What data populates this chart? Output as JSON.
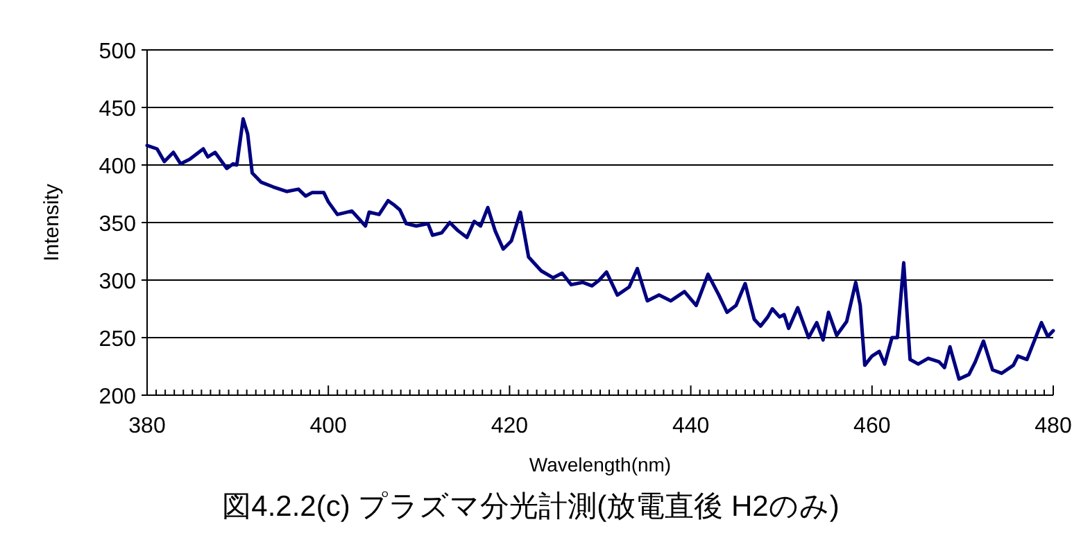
{
  "chart_data": {
    "type": "line",
    "title": "図4.2.2(c)  プラズマ分光計測(放電直後  H2のみ)",
    "xlabel": "Wavelength(nm)",
    "ylabel": "Intensity",
    "xlim": [
      380,
      480
    ],
    "ylim": [
      200,
      500
    ],
    "xticks": [
      380,
      {
        "value": 381,
        "label": null
      },
      {
        "value": 382,
        "label": null
      },
      {
        "value": 383,
        "label": null
      },
      {
        "value": 384,
        "label": null
      },
      {
        "value": 385,
        "label": null
      },
      {
        "value": 386,
        "label": null
      },
      {
        "value": 387,
        "label": null
      },
      {
        "value": 388,
        "label": null
      },
      {
        "value": 389,
        "label": null
      },
      {
        "value": 390,
        "label": null
      },
      {
        "value": 391,
        "label": null
      },
      {
        "value": 392,
        "label": null
      },
      {
        "value": 393,
        "label": null
      },
      {
        "value": 394,
        "label": null
      },
      {
        "value": 395,
        "label": null
      },
      {
        "value": 396,
        "label": null
      },
      {
        "value": 397,
        "label": null
      },
      {
        "value": 398,
        "label": null
      },
      {
        "value": 399,
        "label": null
      },
      400,
      {
        "value": 401,
        "label": null
      },
      {
        "value": 402,
        "label": null
      },
      {
        "value": 403,
        "label": null
      },
      {
        "value": 404,
        "label": null
      },
      {
        "value": 405,
        "label": null
      },
      {
        "value": 406,
        "label": null
      },
      {
        "value": 407,
        "label": null
      },
      {
        "value": 408,
        "label": null
      },
      {
        "value": 409,
        "label": null
      },
      {
        "value": 410,
        "label": null
      },
      {
        "value": 411,
        "label": null
      },
      {
        "value": 412,
        "label": null
      },
      {
        "value": 413,
        "label": null
      },
      {
        "value": 414,
        "label": null
      },
      {
        "value": 415,
        "label": null
      },
      {
        "value": 416,
        "label": null
      },
      {
        "value": 417,
        "label": null
      },
      {
        "value": 418,
        "label": null
      },
      {
        "value": 419,
        "label": null
      },
      420,
      {
        "value": 421,
        "label": null
      },
      {
        "value": 422,
        "label": null
      },
      {
        "value": 423,
        "label": null
      },
      {
        "value": 424,
        "label": null
      },
      {
        "value": 425,
        "label": null
      },
      {
        "value": 426,
        "label": null
      },
      {
        "value": 427,
        "label": null
      },
      {
        "value": 428,
        "label": null
      },
      {
        "value": 429,
        "label": null
      },
      {
        "value": 430,
        "label": null
      },
      {
        "value": 431,
        "label": null
      },
      {
        "value": 432,
        "label": null
      },
      {
        "value": 433,
        "label": null
      },
      {
        "value": 434,
        "label": null
      },
      {
        "value": 435,
        "label": null
      },
      {
        "value": 436,
        "label": null
      },
      {
        "value": 437,
        "label": null
      },
      {
        "value": 438,
        "label": null
      },
      {
        "value": 439,
        "label": null
      },
      440,
      {
        "value": 441,
        "label": null
      },
      {
        "value": 442,
        "label": null
      },
      {
        "value": 443,
        "label": null
      },
      {
        "value": 444,
        "label": null
      },
      {
        "value": 445,
        "label": null
      },
      {
        "value": 446,
        "label": null
      },
      {
        "value": 447,
        "label": null
      },
      {
        "value": 448,
        "label": null
      },
      {
        "value": 449,
        "label": null
      },
      {
        "value": 450,
        "label": null
      },
      {
        "value": 451,
        "label": null
      },
      {
        "value": 452,
        "label": null
      },
      {
        "value": 453,
        "label": null
      },
      {
        "value": 454,
        "label": null
      },
      {
        "value": 455,
        "label": null
      },
      {
        "value": 456,
        "label": null
      },
      {
        "value": 457,
        "label": null
      },
      {
        "value": 458,
        "label": null
      },
      {
        "value": 459,
        "label": null
      },
      460,
      {
        "value": 461,
        "label": null
      },
      {
        "value": 462,
        "label": null
      },
      {
        "value": 463,
        "label": null
      },
      {
        "value": 464,
        "label": null
      },
      {
        "value": 465,
        "label": null
      },
      {
        "value": 466,
        "label": null
      },
      {
        "value": 467,
        "label": null
      },
      {
        "value": 468,
        "label": null
      },
      {
        "value": 469,
        "label": null
      },
      {
        "value": 470,
        "label": null
      },
      {
        "value": 471,
        "label": null
      },
      {
        "value": 472,
        "label": null
      },
      {
        "value": 473,
        "label": null
      },
      {
        "value": 474,
        "label": null
      },
      {
        "value": 475,
        "label": null
      },
      {
        "value": 476,
        "label": null
      },
      {
        "value": 477,
        "label": null
      },
      {
        "value": 478,
        "label": null
      },
      {
        "value": 479,
        "label": null
      },
      480
    ],
    "yticks": [
      200,
      250,
      300,
      350,
      400,
      450,
      500
    ],
    "grid": "y",
    "marker": "none",
    "line_style": "solid",
    "series": [
      {
        "color": "#000080",
        "x": [
          380,
          381.1,
          381.9,
          382.9,
          383.7,
          384.7,
          386.2,
          386.7,
          387.5,
          388.8,
          389.5,
          389.9,
          390.6,
          391.1,
          391.6,
          392.6,
          393.9,
          395.4,
          396.7,
          397.5,
          398.2,
          399.5,
          400.0,
          401.0,
          402.6,
          404.1,
          404.5,
          405.6,
          406.6,
          407.3,
          407.9,
          408.6,
          409.7,
          411.0,
          411.5,
          412.5,
          413.4,
          414.3,
          415.3,
          416.1,
          416.8,
          417.6,
          418.4,
          419.3,
          420.2,
          421.2,
          422.1,
          423.5,
          424.8,
          425.8,
          426.8,
          428.1,
          429.1,
          429.9,
          430.7,
          431.9,
          433.2,
          434.1,
          435.2,
          436.5,
          437.8,
          439.3,
          440.6,
          441.9,
          443.1,
          444.0,
          445.0,
          446.0,
          447.0,
          447.7,
          448.5,
          449.0,
          449.8,
          450.3,
          450.8,
          451.8,
          453.0,
          453.9,
          454.6,
          455.2,
          456.1,
          457.2,
          458.2,
          458.7,
          459.2,
          460.0,
          460.8,
          461.4,
          462.2,
          462.8,
          463.5,
          464.2,
          465.1,
          466.2,
          467.4,
          468.0,
          468.6,
          469.6,
          470.7,
          471.4,
          472.3,
          473.3,
          474.3,
          475.6,
          476.1,
          477.1,
          478.7,
          479.4,
          480.0
        ],
        "values": [
          417,
          414,
          403,
          411,
          401,
          405,
          414,
          407,
          411,
          397,
          401,
          400,
          440,
          427,
          393,
          385,
          381,
          377,
          379,
          373,
          376,
          376,
          368,
          357,
          360,
          347,
          359,
          357,
          369,
          365,
          361,
          349,
          347,
          349,
          339,
          341,
          350,
          343,
          337,
          351,
          347,
          363,
          343,
          327,
          334,
          359,
          320,
          308,
          302,
          306,
          296,
          298,
          295,
          300,
          307,
          287,
          294,
          310,
          282,
          287,
          282,
          290,
          278,
          305,
          287,
          272,
          278,
          297,
          266,
          260,
          268,
          275,
          268,
          270,
          258,
          276,
          250,
          263,
          248,
          272,
          252,
          264,
          298,
          278,
          226,
          234,
          238,
          227,
          250,
          250,
          315,
          231,
          227,
          232,
          229,
          224,
          242,
          214,
          218,
          229,
          247,
          222,
          219,
          226,
          234,
          231,
          263,
          251,
          256
        ]
      }
    ]
  }
}
